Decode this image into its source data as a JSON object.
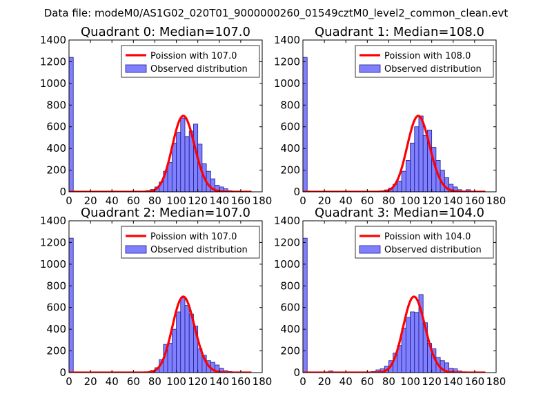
{
  "figure": {
    "suptitle": "Data file: modeM0/AS1G02_020T01_9000000260_01549cztM0_level2_common_clean.evt"
  },
  "colors": {
    "bar_fill": "#8080ff",
    "bar_edge": "#1a1a8c",
    "curve": "#ff0000"
  },
  "chart_data": [
    {
      "type": "bar+line",
      "title": "Quadrant 0: Median=107.0",
      "median": 107.0,
      "xlim": [
        0,
        180
      ],
      "ylim": [
        0,
        1400
      ],
      "xticks": [
        0,
        20,
        40,
        60,
        80,
        100,
        120,
        140,
        160,
        180
      ],
      "yticks": [
        0,
        200,
        400,
        600,
        800,
        1000,
        1200,
        1400
      ],
      "legend": [
        "Poission with 107.0",
        "Observed distribution"
      ],
      "legend_position": "top-right",
      "bin_width": 4,
      "bins": [
        {
          "x": 0,
          "y": 1240
        },
        {
          "x": 68,
          "y": 6
        },
        {
          "x": 72,
          "y": 12
        },
        {
          "x": 76,
          "y": 22
        },
        {
          "x": 80,
          "y": 45
        },
        {
          "x": 84,
          "y": 90
        },
        {
          "x": 88,
          "y": 190
        },
        {
          "x": 92,
          "y": 270
        },
        {
          "x": 96,
          "y": 450
        },
        {
          "x": 100,
          "y": 550
        },
        {
          "x": 104,
          "y": 680
        },
        {
          "x": 108,
          "y": 510
        },
        {
          "x": 112,
          "y": 560
        },
        {
          "x": 116,
          "y": 625
        },
        {
          "x": 120,
          "y": 440
        },
        {
          "x": 124,
          "y": 260
        },
        {
          "x": 128,
          "y": 190
        },
        {
          "x": 132,
          "y": 120
        },
        {
          "x": 136,
          "y": 60
        },
        {
          "x": 140,
          "y": 45
        },
        {
          "x": 144,
          "y": 28
        },
        {
          "x": 148,
          "y": 10
        },
        {
          "x": 152,
          "y": 4
        }
      ]
    },
    {
      "type": "bar+line",
      "title": "Quadrant 1: Median=108.0",
      "median": 108.0,
      "xlim": [
        0,
        180
      ],
      "ylim": [
        0,
        1400
      ],
      "xticks": [
        0,
        20,
        40,
        60,
        80,
        100,
        120,
        140,
        160,
        180
      ],
      "yticks": [
        0,
        200,
        400,
        600,
        800,
        1000,
        1200,
        1400
      ],
      "legend": [
        "Poission with 108.0",
        "Observed distribution"
      ],
      "legend_position": "top-right",
      "bin_width": 4,
      "bins": [
        {
          "x": 0,
          "y": 1240
        },
        {
          "x": 72,
          "y": 8
        },
        {
          "x": 76,
          "y": 18
        },
        {
          "x": 80,
          "y": 35
        },
        {
          "x": 84,
          "y": 70
        },
        {
          "x": 88,
          "y": 100
        },
        {
          "x": 92,
          "y": 190
        },
        {
          "x": 96,
          "y": 290
        },
        {
          "x": 100,
          "y": 450
        },
        {
          "x": 104,
          "y": 600
        },
        {
          "x": 108,
          "y": 700
        },
        {
          "x": 112,
          "y": 520
        },
        {
          "x": 116,
          "y": 570
        },
        {
          "x": 120,
          "y": 410
        },
        {
          "x": 124,
          "y": 290
        },
        {
          "x": 128,
          "y": 200
        },
        {
          "x": 132,
          "y": 130
        },
        {
          "x": 136,
          "y": 70
        },
        {
          "x": 140,
          "y": 45
        },
        {
          "x": 144,
          "y": 20
        },
        {
          "x": 148,
          "y": 8
        },
        {
          "x": 152,
          "y": 20
        },
        {
          "x": 156,
          "y": 4
        }
      ]
    },
    {
      "type": "bar+line",
      "title": "Quadrant 2: Median=107.0",
      "median": 107.0,
      "xlim": [
        0,
        180
      ],
      "ylim": [
        0,
        1400
      ],
      "xticks": [
        0,
        20,
        40,
        60,
        80,
        100,
        120,
        140,
        160,
        180
      ],
      "yticks": [
        0,
        200,
        400,
        600,
        800,
        1000,
        1200,
        1400
      ],
      "legend": [
        "Poission with 107.0",
        "Observed distribution"
      ],
      "legend_position": "top-right",
      "bin_width": 4,
      "bins": [
        {
          "x": 0,
          "y": 1240
        },
        {
          "x": 76,
          "y": 20
        },
        {
          "x": 80,
          "y": 45
        },
        {
          "x": 84,
          "y": 120
        },
        {
          "x": 88,
          "y": 260
        },
        {
          "x": 92,
          "y": 270
        },
        {
          "x": 96,
          "y": 400
        },
        {
          "x": 100,
          "y": 560
        },
        {
          "x": 104,
          "y": 690
        },
        {
          "x": 108,
          "y": 620
        },
        {
          "x": 112,
          "y": 540
        },
        {
          "x": 116,
          "y": 430
        },
        {
          "x": 120,
          "y": 220
        },
        {
          "x": 124,
          "y": 160
        },
        {
          "x": 128,
          "y": 110
        },
        {
          "x": 132,
          "y": 95
        },
        {
          "x": 136,
          "y": 70
        },
        {
          "x": 140,
          "y": 40
        },
        {
          "x": 144,
          "y": 18
        },
        {
          "x": 148,
          "y": 10
        },
        {
          "x": 152,
          "y": 6
        }
      ]
    },
    {
      "type": "bar+line",
      "title": "Quadrant 3: Median=104.0",
      "median": 104.0,
      "xlim": [
        0,
        180
      ],
      "ylim": [
        0,
        1400
      ],
      "xticks": [
        0,
        20,
        40,
        60,
        80,
        100,
        120,
        140,
        160,
        180
      ],
      "yticks": [
        0,
        200,
        400,
        600,
        800,
        1000,
        1200,
        1400
      ],
      "legend": [
        "Poission with 104.0",
        "Observed distribution"
      ],
      "legend_position": "top-right",
      "bin_width": 4,
      "bins": [
        {
          "x": 0,
          "y": 1240
        },
        {
          "x": 24,
          "y": 15
        },
        {
          "x": 60,
          "y": 6
        },
        {
          "x": 64,
          "y": 10
        },
        {
          "x": 68,
          "y": 25
        },
        {
          "x": 72,
          "y": 35
        },
        {
          "x": 76,
          "y": 60
        },
        {
          "x": 80,
          "y": 110
        },
        {
          "x": 84,
          "y": 180
        },
        {
          "x": 88,
          "y": 250
        },
        {
          "x": 92,
          "y": 410
        },
        {
          "x": 96,
          "y": 510
        },
        {
          "x": 100,
          "y": 560
        },
        {
          "x": 104,
          "y": 555
        },
        {
          "x": 108,
          "y": 720
        },
        {
          "x": 112,
          "y": 460
        },
        {
          "x": 116,
          "y": 270
        },
        {
          "x": 120,
          "y": 220
        },
        {
          "x": 124,
          "y": 140
        },
        {
          "x": 128,
          "y": 110
        },
        {
          "x": 132,
          "y": 90
        },
        {
          "x": 136,
          "y": 40
        },
        {
          "x": 140,
          "y": 35
        },
        {
          "x": 144,
          "y": 15
        },
        {
          "x": 148,
          "y": 8
        },
        {
          "x": 152,
          "y": 5
        }
      ]
    }
  ]
}
